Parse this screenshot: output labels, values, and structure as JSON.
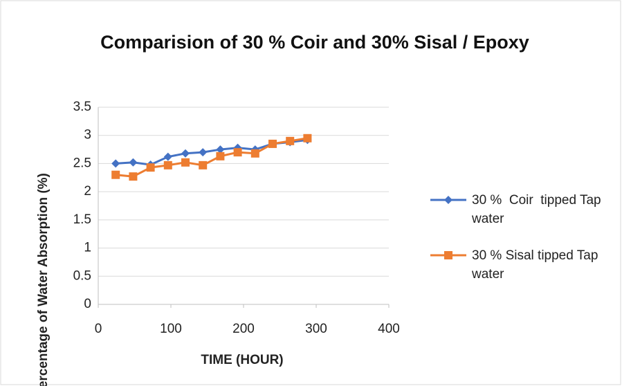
{
  "chart_data": {
    "type": "line",
    "title": "Comparision of 30 % Coir and 30% Sisal / Epoxy",
    "x_label": "TIME (HOUR)",
    "y_label": "Percentage of Water Absorption (%)",
    "x": [
      24,
      48,
      72,
      96,
      120,
      144,
      168,
      192,
      216,
      240,
      264,
      288
    ],
    "series": [
      {
        "name": "30 %  Coir  tipped Tap water",
        "color": "#4472c4",
        "marker": "diamond",
        "values": [
          2.5,
          2.52,
          2.48,
          2.62,
          2.68,
          2.7,
          2.75,
          2.78,
          2.75,
          2.85,
          2.88,
          2.92
        ]
      },
      {
        "name": "30 % Sisal tipped Tap water",
        "color": "#ed7d31",
        "marker": "square",
        "values": [
          2.3,
          2.27,
          2.43,
          2.47,
          2.52,
          2.47,
          2.63,
          2.7,
          2.68,
          2.85,
          2.9,
          2.95
        ]
      }
    ],
    "xlim": [
      0,
      400
    ],
    "xticks": [
      0,
      100,
      200,
      300,
      400
    ],
    "ylim": [
      0,
      3.5
    ],
    "yticks": [
      0,
      0.5,
      1,
      1.5,
      2,
      2.5,
      3,
      3.5
    ],
    "grid": true,
    "legend": "right"
  }
}
